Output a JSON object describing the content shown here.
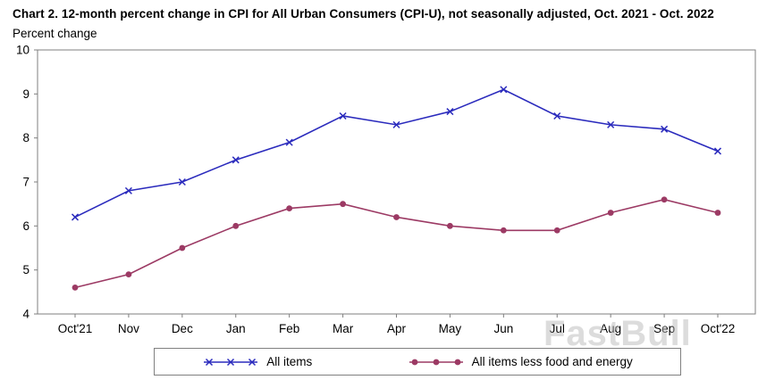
{
  "title": "Chart 2. 12-month percent change in CPI for All Urban Consumers (CPI-U), not seasonally adjusted, Oct. 2021 - Oct. 2022",
  "ylabel_caption": "Percent change",
  "watermark": "FastBull",
  "legend": {
    "items": [
      {
        "label": "All items"
      },
      {
        "label": "All items less food and energy"
      }
    ]
  },
  "chart_data": {
    "type": "line",
    "title": "Chart 2. 12-month percent change in CPI for All Urban Consumers (CPI-U), not seasonally adjusted, Oct. 2021 - Oct. 2022",
    "xlabel": "",
    "ylabel": "Percent change",
    "categories": [
      "Oct'21",
      "Nov",
      "Dec",
      "Jan",
      "Feb",
      "Mar",
      "Apr",
      "May",
      "Jun",
      "Jul",
      "Aug",
      "Sep",
      "Oct'22"
    ],
    "series": [
      {
        "name": "All items",
        "color": "#2b2bbd",
        "marker": "x",
        "values": [
          6.2,
          6.8,
          7.0,
          7.5,
          7.9,
          8.5,
          8.3,
          8.6,
          9.1,
          8.5,
          8.3,
          8.2,
          7.7
        ]
      },
      {
        "name": "All items less food and energy",
        "color": "#9c3a64",
        "marker": "circle",
        "values": [
          4.6,
          4.9,
          5.5,
          6.0,
          6.4,
          6.5,
          6.2,
          6.0,
          5.9,
          5.9,
          6.3,
          6.6,
          6.3
        ]
      }
    ],
    "ylim": [
      4,
      10
    ],
    "ytick_step": 1,
    "grid": false,
    "legend_position": "bottom",
    "axis_color": "#7f7f7f"
  }
}
